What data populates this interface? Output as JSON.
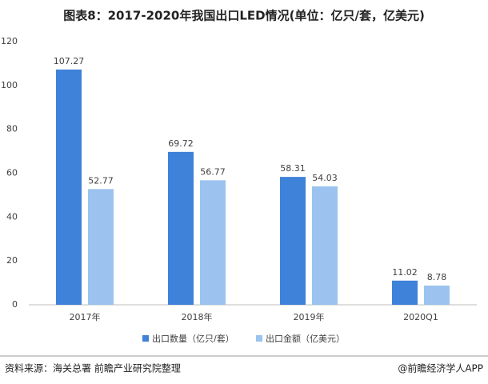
{
  "chart_data": {
    "type": "bar",
    "title": "图表8：2017-2020年我国出口LED情况(单位：亿只/套，亿美元)",
    "categories": [
      "2017年",
      "2018年",
      "2019年",
      "2020Q1"
    ],
    "series": [
      {
        "name": "出口数量（亿只/套）",
        "color": "#3f82d9",
        "values": [
          107.27,
          69.72,
          58.31,
          11.02
        ]
      },
      {
        "name": "出口金额（亿美元）",
        "color": "#9cc3ef",
        "values": [
          52.77,
          56.77,
          54.03,
          8.78
        ]
      }
    ],
    "ylim": [
      0,
      120
    ],
    "yticks": [
      0,
      20,
      40,
      60,
      80,
      100,
      120
    ],
    "grid": false
  },
  "footer": {
    "source": "资料来源：海关总署 前瞻产业研究院整理",
    "credit": "@前瞻经济学人APP"
  }
}
